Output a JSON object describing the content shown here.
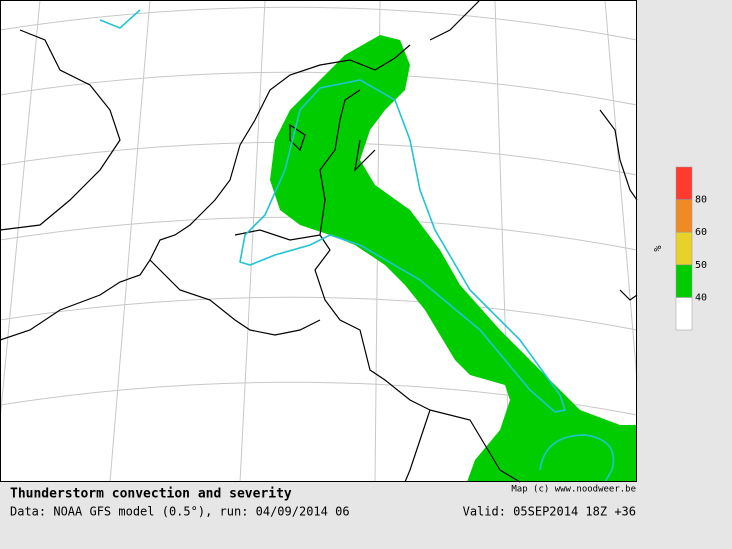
{
  "title": "Thunderstorm convection and severity",
  "data_line": "Data: NOAA GFS model (0.5°), run: 04/09/2014 06",
  "credit": "Map (c) www.noodweer.be",
  "valid": "Valid: 05SEP2014 18Z +36",
  "legend": {
    "unit": "%",
    "levels": [
      40,
      50,
      60,
      80
    ],
    "colors": [
      "#ffffff",
      "#00cc00",
      "#e8d22a",
      "#f08a24",
      "#ff3b30"
    ]
  }
}
